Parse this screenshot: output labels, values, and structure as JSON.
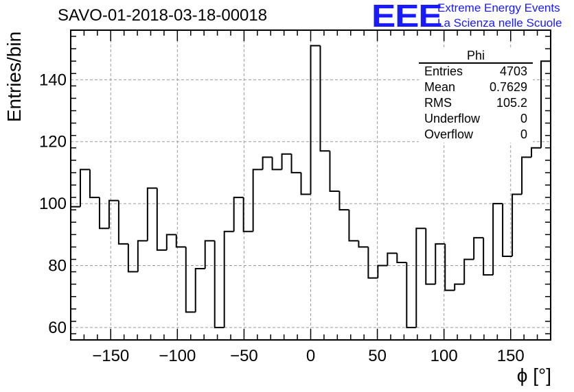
{
  "header": {
    "run_title": "SAVO-01-2018-03-18-00018",
    "logo_text": "EEE",
    "logo_line1": "Extreme Energy Events",
    "logo_line2": "La Scienza nelle Scuole",
    "logo_color": "#1a1aff"
  },
  "stats_box": {
    "title": "Phi",
    "rows": [
      {
        "label": "Entries",
        "value": "4703"
      },
      {
        "label": "Mean",
        "value": "0.7629"
      },
      {
        "label": "RMS",
        "value": "105.2"
      },
      {
        "label": "Underflow",
        "value": "0"
      },
      {
        "label": "Overflow",
        "value": "0"
      }
    ]
  },
  "chart_data": {
    "type": "histogram",
    "title": "SAVO-01-2018-03-18-00018",
    "xlabel": "ϕ [°]",
    "ylabel": "Entries/bin",
    "xlim": [
      -180,
      180
    ],
    "ylim": [
      56,
      156
    ],
    "bin_width": 7.2,
    "x_ticks": [
      -150,
      -100,
      -50,
      0,
      50,
      100,
      150
    ],
    "x_tick_labels": [
      "−150",
      "−100",
      "−50",
      "0",
      "50",
      "100",
      "150"
    ],
    "y_ticks": [
      60,
      80,
      100,
      120,
      140
    ],
    "y_tick_labels": [
      "60",
      "80",
      "100",
      "120",
      "140"
    ],
    "grid": true,
    "values": [
      99,
      111,
      102,
      92,
      101,
      87,
      78,
      88,
      105,
      85,
      90,
      86,
      65,
      79,
      88,
      60,
      91,
      102,
      91,
      111,
      115,
      111,
      116,
      110,
      103,
      151,
      117,
      104,
      98,
      88,
      86,
      76,
      80,
      84,
      81,
      60,
      92,
      74,
      87,
      72,
      74,
      82,
      89,
      77,
      100,
      83,
      103,
      115,
      118,
      146
    ]
  }
}
